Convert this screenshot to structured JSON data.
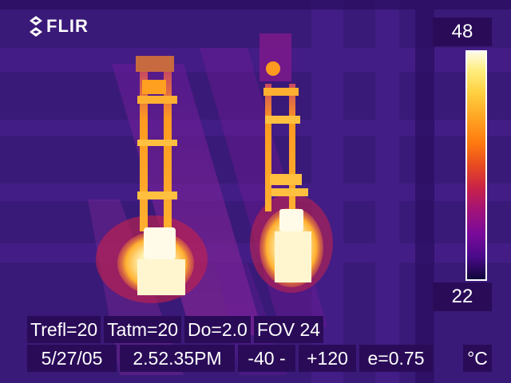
{
  "brand": {
    "logo_text": "FLIR"
  },
  "scale": {
    "max": "48",
    "min": "22",
    "unit": "°C"
  },
  "params_row": [
    "Trefl=20",
    "Tatm=20",
    "Do=2.0",
    "FOV 24"
  ],
  "status_row": [
    "5/27/05",
    "2.52.35PM",
    "-40 -",
    "+120",
    "e=0.75"
  ],
  "colors": {
    "background_purple": "#3a1a78",
    "hot_white": "#fffbe8",
    "warm_orange": "#ffa020",
    "label_bg": "#2a0b58"
  }
}
